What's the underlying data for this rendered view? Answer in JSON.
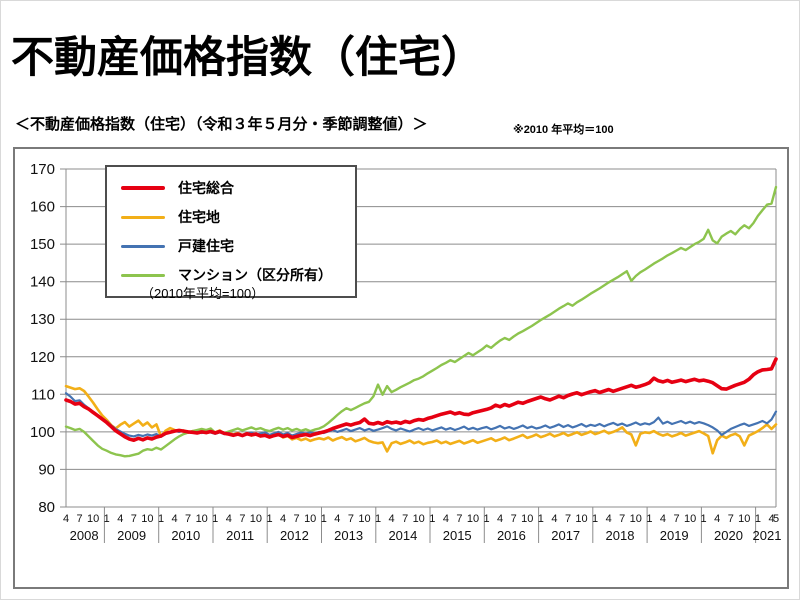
{
  "header": {
    "title": "不動産価格指数（住宅）",
    "subtitle": "＜不動産価格指数（住宅）（令和３年５月分・季節調整値）＞",
    "note": "※2010 年平均＝100"
  },
  "chart_data": {
    "type": "line",
    "title": "不動産価格指数（住宅）",
    "note_inside": "（2010年平均=100）",
    "x_unit": "month",
    "x_start": "2008-04",
    "x_end": "2021-05",
    "n": 158,
    "ylim": [
      80,
      170
    ],
    "y_ticks": [
      80,
      90,
      100,
      110,
      120,
      130,
      140,
      150,
      160,
      170
    ],
    "grid": true,
    "grid_color": "#8c8c8c",
    "legend_position": "top-left",
    "draw_order": [
      1,
      3,
      2,
      0
    ],
    "x_axis": {
      "year_boundaries": [
        8.5,
        20.5,
        32.5,
        44.5,
        56.5,
        68.5,
        80.5,
        92.5,
        104.5,
        116.5,
        128.5,
        140.5,
        152.5
      ],
      "month_tick_positions": [
        0,
        3,
        6,
        9,
        12,
        15,
        18,
        21,
        24,
        27,
        30,
        33,
        36,
        39,
        42,
        45,
        48,
        51,
        54,
        57,
        60,
        63,
        66,
        69,
        72,
        75,
        78,
        81,
        84,
        87,
        90,
        93,
        96,
        99,
        102,
        105,
        108,
        111,
        114,
        117,
        120,
        123,
        126,
        129,
        132,
        135,
        138,
        141,
        144,
        147,
        150,
        153,
        156,
        157
      ],
      "month_tick_labels": [
        "4",
        "7",
        "10",
        "1",
        "4",
        "7",
        "10",
        "1",
        "4",
        "7",
        "10",
        "1",
        "4",
        "7",
        "10",
        "1",
        "4",
        "7",
        "10",
        "1",
        "4",
        "7",
        "10",
        "1",
        "4",
        "7",
        "10",
        "1",
        "4",
        "7",
        "10",
        "1",
        "4",
        "7",
        "10",
        "1",
        "4",
        "7",
        "10",
        "1",
        "4",
        "7",
        "10",
        "1",
        "4",
        "7",
        "10",
        "1",
        "4",
        "7",
        "10",
        "1",
        "4",
        "5"
      ],
      "year_labels": [
        {
          "pos": 4,
          "label": "2008"
        },
        {
          "pos": 14.5,
          "label": "2009"
        },
        {
          "pos": 26.5,
          "label": "2010"
        },
        {
          "pos": 38.5,
          "label": "2011"
        },
        {
          "pos": 50.5,
          "label": "2012"
        },
        {
          "pos": 62.5,
          "label": "2013"
        },
        {
          "pos": 74.5,
          "label": "2014"
        },
        {
          "pos": 86.5,
          "label": "2015"
        },
        {
          "pos": 98.5,
          "label": "2016"
        },
        {
          "pos": 110.5,
          "label": "2017"
        },
        {
          "pos": 122.5,
          "label": "2018"
        },
        {
          "pos": 134.5,
          "label": "2019"
        },
        {
          "pos": 146.5,
          "label": "2020"
        },
        {
          "pos": 155,
          "label": "2021"
        }
      ]
    },
    "series": [
      {
        "name": "住宅総合",
        "color": "#e60012",
        "width": 3.6,
        "swatch_h": 4,
        "values": [
          108.5,
          108.1,
          107.4,
          107.6,
          106.7,
          106.1,
          105.2,
          104.3,
          103.4,
          102.5,
          101.4,
          100.3,
          99.5,
          98.7,
          98.1,
          97.8,
          98.3,
          97.9,
          98.4,
          98.1,
          98.6,
          98.9,
          99.6,
          99.9,
          100.2,
          100.4,
          100.2,
          100.0,
          99.9,
          99.7,
          100.0,
          99.8,
          100.1,
          99.7,
          100.1,
          99.6,
          99.4,
          99.1,
          99.4,
          99.0,
          99.5,
          99.2,
          99.4,
          98.9,
          99.1,
          98.6,
          99.0,
          99.3,
          98.8,
          99.1,
          98.5,
          98.8,
          99.1,
          99.3,
          99.0,
          99.4,
          99.7,
          100.0,
          100.4,
          100.9,
          101.3,
          101.7,
          102.1,
          101.8,
          102.2,
          102.5,
          103.4,
          102.3,
          102.1,
          102.5,
          102.1,
          102.7,
          102.4,
          102.6,
          102.3,
          102.8,
          102.5,
          103.0,
          103.3,
          103.1,
          103.6,
          103.9,
          104.3,
          104.7,
          105.0,
          105.3,
          104.8,
          105.1,
          104.7,
          104.6,
          105.1,
          105.4,
          105.7,
          106.0,
          106.4,
          107.1,
          106.7,
          107.3,
          106.9,
          107.4,
          107.9,
          107.6,
          108.1,
          108.5,
          108.9,
          109.3,
          108.8,
          108.5,
          109.0,
          109.5,
          109.1,
          109.7,
          110.1,
          110.4,
          109.9,
          110.3,
          110.7,
          111.0,
          110.5,
          110.9,
          111.3,
          110.8,
          111.2,
          111.6,
          112.0,
          112.4,
          111.9,
          112.2,
          112.6,
          113.1,
          114.3,
          113.6,
          113.3,
          113.7,
          113.2,
          113.5,
          113.8,
          113.4,
          113.7,
          114.0,
          113.6,
          113.8,
          113.5,
          113.1,
          112.3,
          111.5,
          111.4,
          111.9,
          112.4,
          112.8,
          113.2,
          114.0,
          115.2,
          116.0,
          116.5,
          116.6,
          116.8,
          119.4
        ]
      },
      {
        "name": "住宅地",
        "color": "#f2af18",
        "width": 2.6,
        "swatch_h": 3,
        "values": [
          112.2,
          111.8,
          111.4,
          111.6,
          110.9,
          109.4,
          107.8,
          106.0,
          104.4,
          103.2,
          101.8,
          100.9,
          101.9,
          102.6,
          101.4,
          102.2,
          103.0,
          101.7,
          102.5,
          101.2,
          102.0,
          98.8,
          100.3,
          101.0,
          100.5,
          100.1,
          100.4,
          99.8,
          100.2,
          99.9,
          100.3,
          99.7,
          100.0,
          99.9,
          100.4,
          99.5,
          99.8,
          99.3,
          99.7,
          99.1,
          99.6,
          99.0,
          99.4,
          98.8,
          99.2,
          98.6,
          99.1,
          99.4,
          98.5,
          98.9,
          98.0,
          98.4,
          97.8,
          98.2,
          97.6,
          98.0,
          98.3,
          98.0,
          98.5,
          97.7,
          98.2,
          98.6,
          97.9,
          98.3,
          97.5,
          97.9,
          98.4,
          97.6,
          97.2,
          97.0,
          97.2,
          94.8,
          97.0,
          97.4,
          96.8,
          97.2,
          97.7,
          97.0,
          97.4,
          96.7,
          97.1,
          97.3,
          97.7,
          97.0,
          97.4,
          96.8,
          97.2,
          97.6,
          96.9,
          97.3,
          97.8,
          97.1,
          97.5,
          97.9,
          98.3,
          97.6,
          98.0,
          98.5,
          97.8,
          98.2,
          98.7,
          99.2,
          98.4,
          98.8,
          99.3,
          98.6,
          99.0,
          99.5,
          98.8,
          99.2,
          99.7,
          99.0,
          99.4,
          99.9,
          99.2,
          99.6,
          100.1,
          99.4,
          99.8,
          100.3,
          99.6,
          100.0,
          100.5,
          101.2,
          99.8,
          99.3,
          96.4,
          99.5,
          99.9,
          99.7,
          100.2,
          99.5,
          99.0,
          99.4,
          98.8,
          99.2,
          99.7,
          99.0,
          99.4,
          99.8,
          100.2,
          99.6,
          98.9,
          94.3,
          97.8,
          99.0,
          98.4,
          99.1,
          99.5,
          98.8,
          96.4,
          99.0,
          99.6,
          100.2,
          101.0,
          102.0,
          100.8,
          102.0
        ]
      },
      {
        "name": "戸建住宅",
        "color": "#4473b2",
        "width": 2.2,
        "swatch_h": 3,
        "values": [
          110.3,
          109.4,
          108.2,
          108.4,
          107.2,
          106.3,
          105.4,
          104.5,
          103.6,
          102.8,
          101.7,
          100.8,
          100.1,
          99.5,
          99.0,
          98.8,
          99.2,
          98.9,
          99.3,
          99.0,
          99.4,
          98.7,
          99.5,
          99.9,
          100.2,
          100.0,
          100.3,
          100.1,
          99.8,
          100.0,
          99.7,
          100.0,
          99.8,
          99.5,
          99.9,
          99.4,
          99.7,
          99.2,
          99.6,
          99.1,
          99.5,
          99.8,
          99.3,
          99.6,
          99.9,
          99.2,
          99.6,
          100.0,
          99.3,
          99.7,
          99.0,
          99.4,
          99.8,
          99.5,
          99.9,
          99.6,
          100.0,
          99.7,
          100.1,
          100.5,
          100.0,
          100.4,
          100.8,
          100.2,
          100.6,
          101.0,
          100.4,
          100.8,
          100.3,
          100.6,
          101.0,
          101.5,
          100.8,
          100.4,
          100.9,
          100.5,
          100.1,
          100.6,
          101.0,
          100.5,
          100.9,
          100.4,
          100.8,
          101.2,
          100.6,
          101.0,
          100.5,
          100.9,
          101.4,
          100.7,
          101.1,
          100.6,
          101.0,
          101.3,
          100.7,
          101.1,
          101.6,
          100.9,
          101.3,
          100.8,
          101.2,
          101.7,
          101.0,
          101.4,
          100.9,
          101.2,
          101.7,
          101.1,
          101.5,
          102.0,
          101.3,
          101.8,
          101.2,
          101.6,
          102.1,
          101.4,
          101.9,
          101.6,
          102.1,
          101.5,
          102.0,
          102.4,
          101.8,
          102.2,
          101.6,
          102.0,
          102.5,
          101.9,
          102.3,
          102.0,
          102.6,
          103.8,
          102.2,
          102.7,
          102.1,
          102.5,
          102.9,
          102.3,
          102.7,
          102.2,
          102.6,
          102.3,
          101.8,
          101.2,
          100.4,
          99.2,
          100.0,
          100.8,
          101.3,
          101.8,
          102.2,
          101.6,
          102.0,
          102.4,
          102.9,
          102.3,
          103.3,
          105.4
        ]
      },
      {
        "name": "マンション（区分所有）",
        "color": "#8dc44e",
        "width": 2.4,
        "swatch_h": 3,
        "values": [
          101.4,
          101.0,
          100.5,
          100.8,
          100.0,
          98.8,
          97.6,
          96.4,
          95.5,
          95.0,
          94.4,
          94.0,
          93.8,
          93.5,
          93.6,
          93.9,
          94.2,
          95.0,
          95.4,
          95.2,
          95.8,
          95.3,
          96.2,
          97.1,
          98.0,
          98.8,
          99.4,
          99.8,
          100.2,
          100.5,
          100.8,
          100.5,
          100.9,
          99.8,
          100.3,
          99.7,
          100.1,
          100.5,
          100.9,
          100.4,
          100.8,
          101.2,
          100.7,
          101.0,
          100.5,
          100.2,
          100.7,
          101.1,
          100.6,
          101.0,
          100.4,
          100.8,
          100.3,
          100.7,
          100.2,
          100.6,
          100.9,
          101.5,
          102.4,
          103.4,
          104.5,
          105.5,
          106.3,
          105.8,
          106.4,
          107.0,
          107.6,
          108.0,
          109.5,
          112.6,
          109.9,
          112.2,
          110.6,
          111.2,
          111.9,
          112.5,
          113.1,
          113.8,
          114.2,
          114.8,
          115.6,
          116.3,
          117.0,
          117.8,
          118.4,
          119.1,
          118.6,
          119.4,
          120.2,
          121.0,
          120.4,
          121.2,
          122.0,
          123.0,
          122.4,
          123.4,
          124.3,
          125.0,
          124.5,
          125.4,
          126.2,
          126.8,
          127.5,
          128.2,
          129.0,
          129.8,
          130.5,
          131.2,
          132.0,
          132.8,
          133.5,
          134.2,
          133.6,
          134.5,
          135.2,
          136.0,
          136.8,
          137.5,
          138.2,
          139.0,
          139.8,
          140.5,
          141.2,
          142.0,
          142.8,
          140.2,
          141.5,
          142.5,
          143.2,
          144.0,
          144.8,
          145.5,
          146.2,
          147.0,
          147.6,
          148.3,
          149.0,
          148.4,
          149.2,
          150.0,
          150.6,
          151.4,
          153.8,
          151.0,
          150.2,
          152.0,
          152.8,
          153.5,
          152.6,
          154.0,
          155.0,
          154.2,
          155.6,
          157.5,
          159.0,
          160.5,
          160.8,
          165.2
        ]
      }
    ]
  }
}
